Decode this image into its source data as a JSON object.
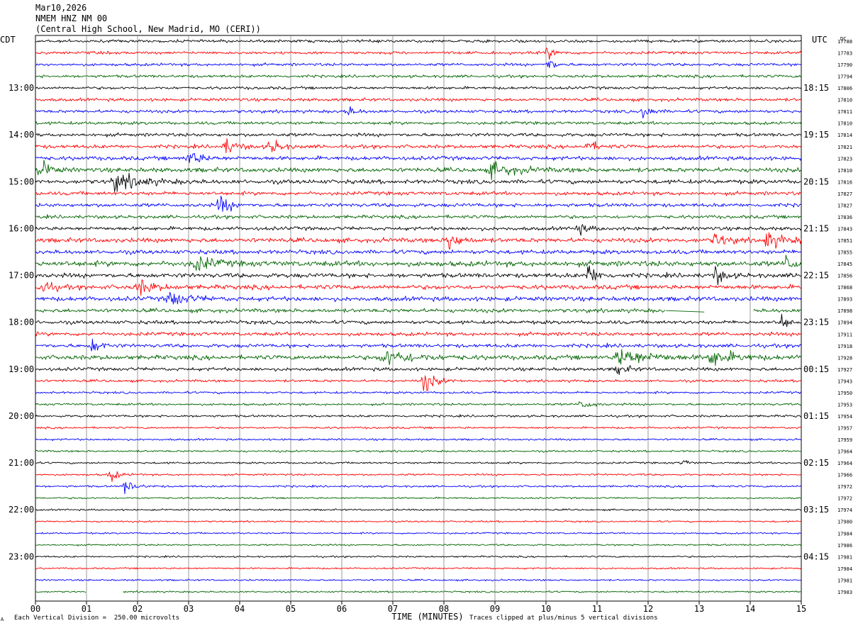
{
  "header": {
    "date": "Mar10,2026",
    "station": "NMEM HNZ NM 00",
    "location": "(Central High School, New Madrid, MO (CERI))"
  },
  "axis_labels": {
    "left_timezone": "CDT",
    "right_timezone": "UTC",
    "rms_header": "DC",
    "x_title": "TIME (MINUTES)"
  },
  "footer": {
    "scale_note": "Each Vertical Division =  250.00 microvolts",
    "clip_note": "Traces clipped at plus/minus 5 vertical divisions",
    "corner_mark": "A"
  },
  "colors": {
    "trace_cycle": [
      "#000000",
      "#ff0000",
      "#0000ff",
      "#006400"
    ],
    "grid": "#808080"
  },
  "chart_data": {
    "type": "line",
    "subtype": "helicorder",
    "x_range": [
      0,
      15
    ],
    "x_ticks": [
      "00",
      "01",
      "02",
      "03",
      "04",
      "05",
      "06",
      "07",
      "08",
      "09",
      "10",
      "11",
      "12",
      "13",
      "14",
      "15"
    ],
    "minutes_per_line": 15,
    "line_count": 48,
    "left_hour_labels": [
      {
        "line": 4,
        "label": "13:00"
      },
      {
        "line": 8,
        "label": "14:00"
      },
      {
        "line": 12,
        "label": "15:00"
      },
      {
        "line": 16,
        "label": "16:00"
      },
      {
        "line": 20,
        "label": "17:00"
      },
      {
        "line": 24,
        "label": "18:00"
      },
      {
        "line": 28,
        "label": "19:00"
      },
      {
        "line": 32,
        "label": "20:00"
      },
      {
        "line": 36,
        "label": "21:00"
      },
      {
        "line": 40,
        "label": "22:00"
      },
      {
        "line": 44,
        "label": "23:00"
      }
    ],
    "right_hour_labels": [
      {
        "line": 4,
        "label": "18:15"
      },
      {
        "line": 8,
        "label": "19:15"
      },
      {
        "line": 12,
        "label": "20:15"
      },
      {
        "line": 16,
        "label": "21:15"
      },
      {
        "line": 20,
        "label": "22:15"
      },
      {
        "line": 24,
        "label": "23:15"
      },
      {
        "line": 28,
        "label": "00:15"
      },
      {
        "line": 32,
        "label": "01:15"
      },
      {
        "line": 36,
        "label": "02:15"
      },
      {
        "line": 40,
        "label": "03:15"
      },
      {
        "line": 44,
        "label": "04:15"
      }
    ],
    "line_dc_values": [
      "17788",
      "17783",
      "17790",
      "17794",
      "17806",
      "17810",
      "17811",
      "17810",
      "17814",
      "17821",
      "17823",
      "17810",
      "17816",
      "17827",
      "17827",
      "17836",
      "17843",
      "17851",
      "17855",
      "17845",
      "17856",
      "17868",
      "17893",
      "17898",
      "17894",
      "17911",
      "17918",
      "17928",
      "17927",
      "17943",
      "17950",
      "17953",
      "17954",
      "17957",
      "17959",
      "17964",
      "17964",
      "17966",
      "17972",
      "17972",
      "17974",
      "17980",
      "17984",
      "17986",
      "17981",
      "17984",
      "17981",
      "17983"
    ],
    "line_activity": [
      1.0,
      1.0,
      1.0,
      1.0,
      1.0,
      1.1,
      1.1,
      1.1,
      1.2,
      1.3,
      1.4,
      1.6,
      1.5,
      1.3,
      1.3,
      1.2,
      1.3,
      1.6,
      1.5,
      1.9,
      1.6,
      1.6,
      1.6,
      1.4,
      1.3,
      1.3,
      1.3,
      1.6,
      1.2,
      0.9,
      0.8,
      0.8,
      0.8,
      0.7,
      0.7,
      0.7,
      0.7,
      0.7,
      0.7,
      0.6,
      0.6,
      0.6,
      0.6,
      0.6,
      0.6,
      0.6,
      0.6,
      0.6
    ],
    "events": [
      {
        "line": 1,
        "minute": 10.0,
        "amp": 8,
        "dur": 0.3
      },
      {
        "line": 2,
        "minute": 10.05,
        "amp": 10,
        "dur": 0.2
      },
      {
        "line": 6,
        "minute": 6.1,
        "amp": 6,
        "dur": 0.3
      },
      {
        "line": 6,
        "minute": 11.9,
        "amp": 10,
        "dur": 0.25
      },
      {
        "line": 9,
        "minute": 3.7,
        "amp": 10,
        "dur": 0.4
      },
      {
        "line": 9,
        "minute": 4.6,
        "amp": 12,
        "dur": 0.3
      },
      {
        "line": 9,
        "minute": 10.8,
        "amp": 8,
        "dur": 0.3
      },
      {
        "line": 10,
        "minute": 3.0,
        "amp": 10,
        "dur": 0.4
      },
      {
        "line": 11,
        "minute": 0.1,
        "amp": 14,
        "dur": 0.3
      },
      {
        "line": 11,
        "minute": 8.9,
        "amp": 9,
        "dur": 0.8
      },
      {
        "line": 12,
        "minute": 1.5,
        "amp": 12,
        "dur": 0.9
      },
      {
        "line": 14,
        "minute": 3.6,
        "amp": 16,
        "dur": 0.3
      },
      {
        "line": 16,
        "minute": 10.6,
        "amp": 8,
        "dur": 0.3
      },
      {
        "line": 17,
        "minute": 8.1,
        "amp": 14,
        "dur": 0.3
      },
      {
        "line": 17,
        "minute": 14.3,
        "amp": 10,
        "dur": 0.6
      },
      {
        "line": 17,
        "minute": 13.3,
        "amp": 9,
        "dur": 0.4
      },
      {
        "line": 19,
        "minute": 3.1,
        "amp": 10,
        "dur": 0.6
      },
      {
        "line": 19,
        "minute": 14.7,
        "amp": 9,
        "dur": 0.4
      },
      {
        "line": 20,
        "minute": 10.8,
        "amp": 16,
        "dur": 0.3
      },
      {
        "line": 20,
        "minute": 13.3,
        "amp": 12,
        "dur": 0.3
      },
      {
        "line": 21,
        "minute": 0.1,
        "amp": 12,
        "dur": 0.3
      },
      {
        "line": 21,
        "minute": 2.0,
        "amp": 10,
        "dur": 0.5
      },
      {
        "line": 22,
        "minute": 2.6,
        "amp": 10,
        "dur": 0.6
      },
      {
        "line": 24,
        "minute": 14.6,
        "amp": 12,
        "dur": 0.2
      },
      {
        "line": 26,
        "minute": 1.1,
        "amp": 10,
        "dur": 0.3
      },
      {
        "line": 27,
        "minute": 6.8,
        "amp": 10,
        "dur": 1.0
      },
      {
        "line": 27,
        "minute": 11.4,
        "amp": 12,
        "dur": 1.0
      },
      {
        "line": 27,
        "minute": 13.2,
        "amp": 10,
        "dur": 0.8
      },
      {
        "line": 28,
        "minute": 11.4,
        "amp": 8,
        "dur": 0.3
      },
      {
        "line": 29,
        "minute": 7.6,
        "amp": 14,
        "dur": 0.4
      },
      {
        "line": 31,
        "minute": 10.7,
        "amp": 8,
        "dur": 0.3
      },
      {
        "line": 36,
        "minute": 12.65,
        "amp": 6,
        "dur": 0.2
      },
      {
        "line": 37,
        "minute": 1.45,
        "amp": 10,
        "dur": 0.25
      },
      {
        "line": 38,
        "minute": 1.75,
        "amp": 9,
        "dur": 0.3
      }
    ],
    "gaps": [
      {
        "line": 23,
        "from": 12.35,
        "to": 14.05
      },
      {
        "line": 47,
        "from": 1.0,
        "to": 1.7
      }
    ],
    "grid": true
  }
}
